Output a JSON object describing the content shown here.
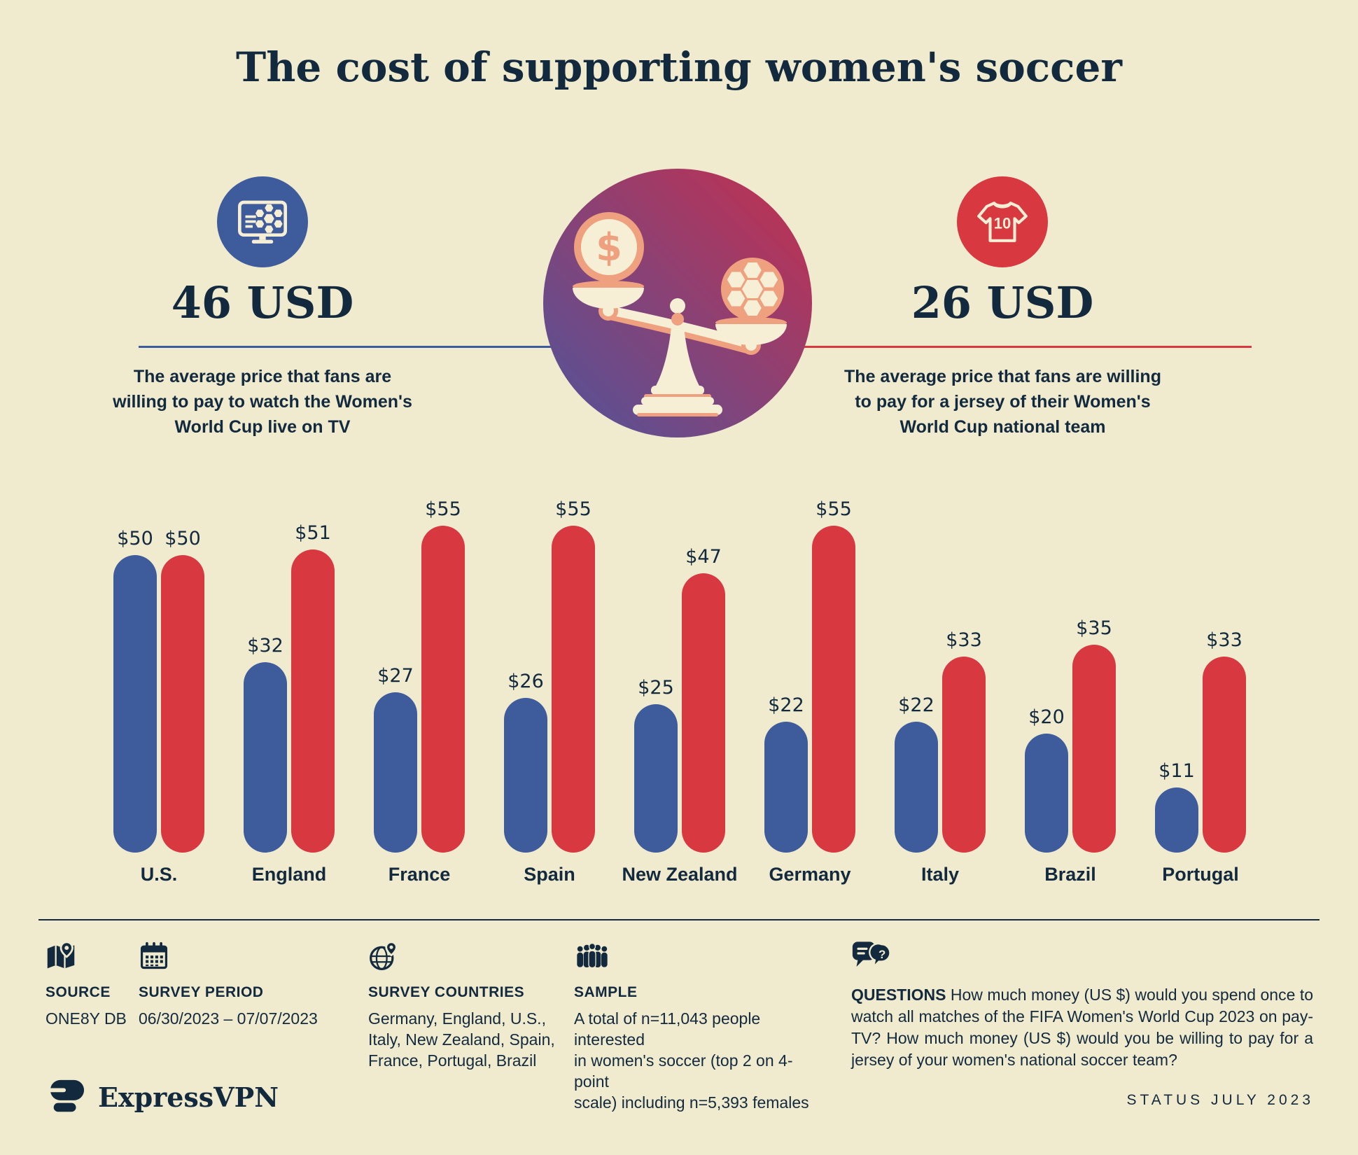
{
  "page": {
    "title": "The cost of supporting women's soccer",
    "status": "STATUS JULY 2023"
  },
  "colors": {
    "background": "#f0ebcf",
    "navy": "#132a3e",
    "blue": "#3e5c9c",
    "red": "#d8383f",
    "salmon": "#efa17f",
    "cream": "#f6efd6",
    "gradient_start": "#4f549b",
    "gradient_end": "#c62f4e"
  },
  "stats": {
    "tv": {
      "value": "46 USD",
      "description": "The average price that fans are willing to pay to watch the Women's World Cup live on TV"
    },
    "jersey": {
      "value": "26 USD",
      "description": "The average price that fans are willing to pay for a jersey of their Women's World Cup national team"
    }
  },
  "icons": {
    "jersey_number": "10",
    "coin_symbol": "$",
    "question_mark": "?"
  },
  "chart_data": {
    "type": "bar",
    "title": "",
    "categories": [
      "U.S.",
      "England",
      "France",
      "Spain",
      "New Zealand",
      "Germany",
      "Italy",
      "Brazil",
      "Portugal"
    ],
    "series": [
      {
        "name": "Price willing to pay to watch Women's World Cup on TV (USD)",
        "color": "#3e5c9c",
        "values": [
          50,
          32,
          27,
          26,
          25,
          22,
          22,
          20,
          11
        ]
      },
      {
        "name": "Price willing to pay for national team jersey (USD)",
        "color": "#d8383f",
        "values": [
          50,
          51,
          55,
          55,
          47,
          55,
          33,
          35,
          33
        ]
      }
    ],
    "value_prefix": "$",
    "xlabel": "",
    "ylabel": "",
    "ylim": [
      0,
      55
    ],
    "grid": false,
    "legend": "none"
  },
  "footer": {
    "source": {
      "label": "SOURCE",
      "value": "ONE8Y DB"
    },
    "survey_period": {
      "label": "SURVEY PERIOD",
      "value": "06/30/2023 – 07/07/2023"
    },
    "survey_countries": {
      "label": "SURVEY COUNTRIES",
      "value": "Germany, England, U.S.,\nItaly, New Zealand, Spain,\nFrance, Portugal, Brazil"
    },
    "sample": {
      "label": "SAMPLE",
      "value": "A total of n=11,043 people interested\nin women's soccer (top 2 on 4-point\nscale) including n=5,393 females"
    },
    "questions": {
      "label": "QUESTIONS",
      "value": "How much money (US $) would you spend once to watch all matches of the FIFA Women's World Cup 2023 on pay-TV? How much money (US $) would you be willing to pay for a jersey of your women's national soccer team?"
    }
  },
  "brand": {
    "logo_text": "ExpressVPN"
  }
}
